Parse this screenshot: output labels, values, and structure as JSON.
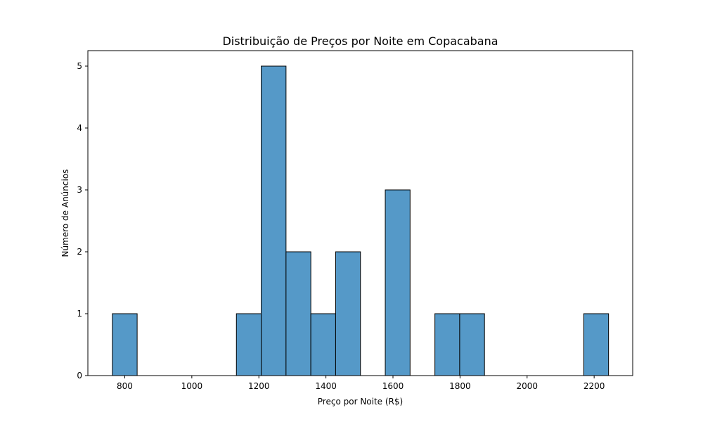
{
  "chart_data": {
    "type": "bar",
    "title": "Distribuição de Preços por Noite em Copacabana",
    "xlabel": "Preço por Noite (R$)",
    "ylabel": "Número de Anúncios",
    "xlim": [
      690,
      2315
    ],
    "ylim": [
      0,
      5.25
    ],
    "x_ticks": [
      800,
      1000,
      1200,
      1400,
      1600,
      1800,
      2000,
      2200
    ],
    "y_ticks": [
      0,
      1,
      2,
      3,
      4,
      5
    ],
    "bins": [
      {
        "start": 763,
        "end": 837,
        "count": 1
      },
      {
        "start": 837,
        "end": 911,
        "count": 0
      },
      {
        "start": 911,
        "end": 985,
        "count": 0
      },
      {
        "start": 985,
        "end": 1059,
        "count": 0
      },
      {
        "start": 1059,
        "end": 1133,
        "count": 0
      },
      {
        "start": 1133,
        "end": 1207,
        "count": 1
      },
      {
        "start": 1207,
        "end": 1281,
        "count": 5
      },
      {
        "start": 1281,
        "end": 1355,
        "count": 2
      },
      {
        "start": 1355,
        "end": 1429,
        "count": 1
      },
      {
        "start": 1429,
        "end": 1503,
        "count": 2
      },
      {
        "start": 1503,
        "end": 1577,
        "count": 0
      },
      {
        "start": 1577,
        "end": 1651,
        "count": 3
      },
      {
        "start": 1651,
        "end": 1725,
        "count": 0
      },
      {
        "start": 1725,
        "end": 1799,
        "count": 1
      },
      {
        "start": 1799,
        "end": 1873,
        "count": 1
      },
      {
        "start": 1873,
        "end": 1947,
        "count": 0
      },
      {
        "start": 1947,
        "end": 2021,
        "count": 0
      },
      {
        "start": 2021,
        "end": 2095,
        "count": 0
      },
      {
        "start": 2095,
        "end": 2169,
        "count": 0
      },
      {
        "start": 2169,
        "end": 2243,
        "count": 1
      }
    ],
    "bar_color": "#5599c8",
    "edge_color": "#000000",
    "grid": false,
    "legend": null
  }
}
